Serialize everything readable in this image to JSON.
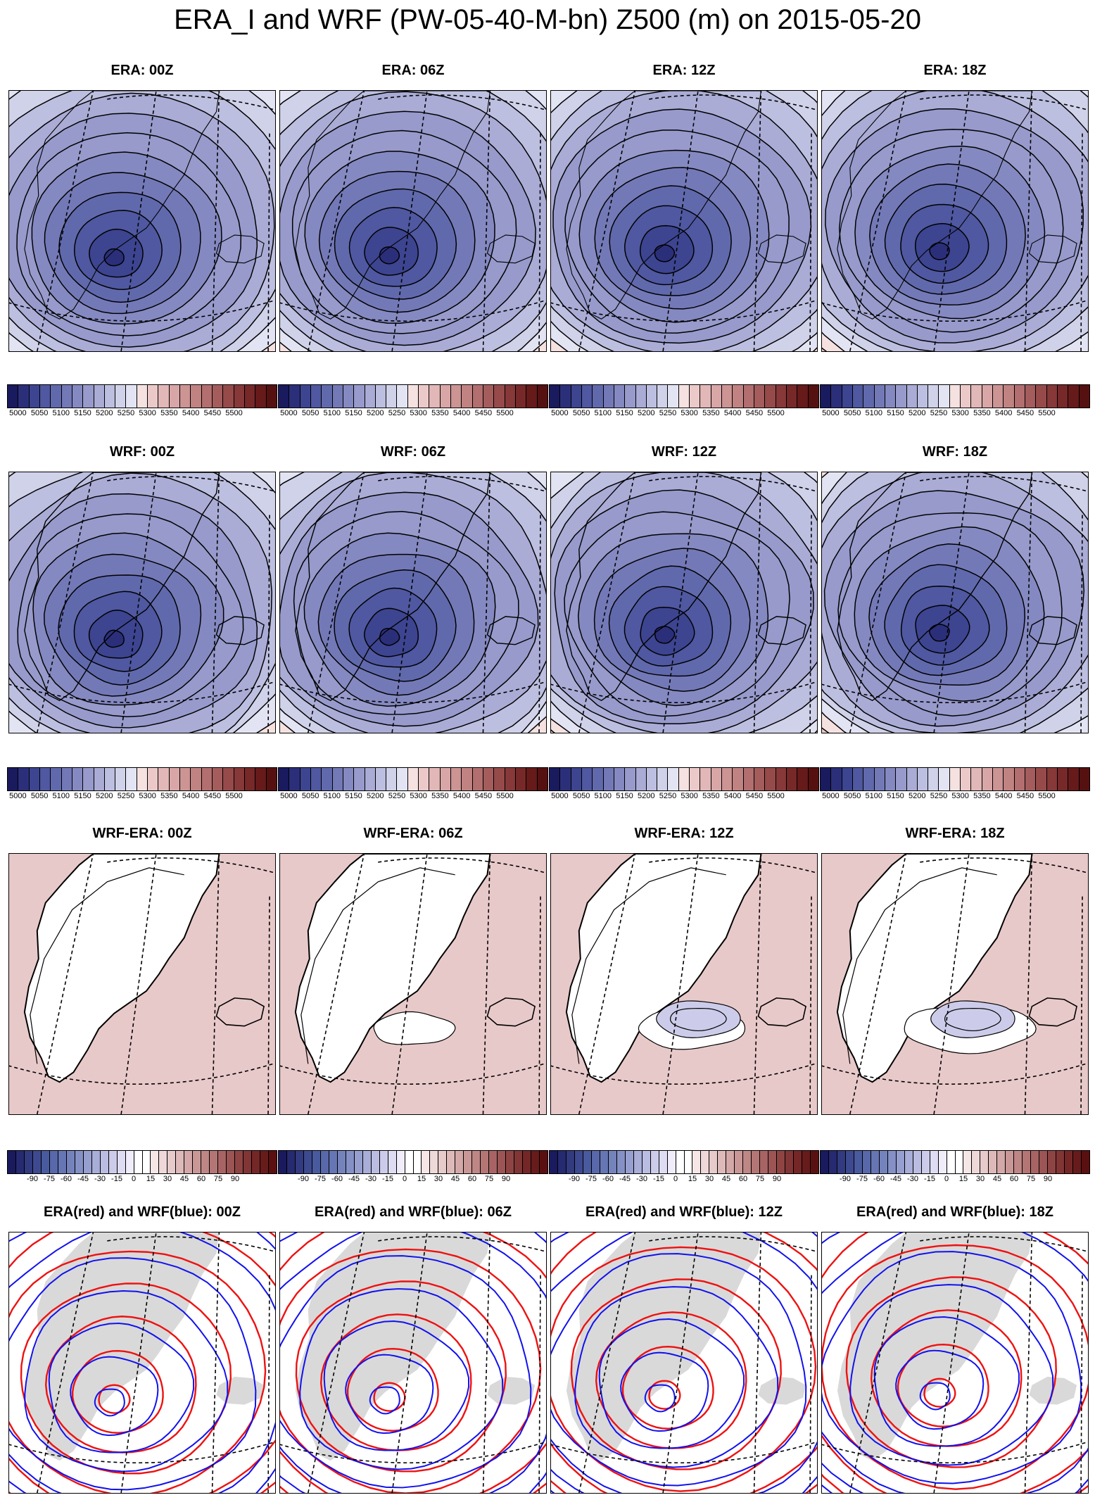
{
  "title": "ERA_I and WRF (PW-05-40-M-bn) Z500 (m) on 2015-05-20",
  "rows": [
    {
      "kind": "era",
      "titles": [
        "ERA: 00Z",
        "ERA: 06Z",
        "ERA: 12Z",
        "ERA: 18Z"
      ]
    },
    {
      "kind": "wrf",
      "titles": [
        "WRF: 00Z",
        "WRF: 06Z",
        "WRF: 12Z",
        "WRF: 18Z"
      ]
    },
    {
      "kind": "diff",
      "titles": [
        "WRF-ERA: 00Z",
        "WRF-ERA: 06Z",
        "WRF-ERA: 12Z",
        "WRF-ERA: 18Z"
      ]
    },
    {
      "kind": "overlay",
      "titles": [
        "ERA(red) and WRF(blue): 00Z",
        "ERA(red) and WRF(blue): 06Z",
        "ERA(red) and WRF(blue): 12Z",
        "ERA(red) and WRF(blue): 18Z"
      ]
    }
  ],
  "colorbars": {
    "z500": {
      "labels": [
        "5000",
        "5050",
        "5100",
        "5150",
        "5200",
        "5250",
        "5300",
        "5350",
        "5400",
        "5450",
        "5500"
      ],
      "colors": [
        "#1a1a5e",
        "#2b2f7a",
        "#3d4490",
        "#4f58a0",
        "#6169ad",
        "#7379b7",
        "#8589c1",
        "#979acb",
        "#aaacd6",
        "#bdbfe0",
        "#d0d2ea",
        "#e3e4f3",
        "#f6e1e1",
        "#ecc9c9",
        "#e2b7b7",
        "#d8a6a6",
        "#cd9494",
        "#c18282",
        "#b36f6f",
        "#a55c5c",
        "#964a4a",
        "#873838",
        "#772828",
        "#661a1a",
        "#551010"
      ]
    },
    "diff": {
      "labels": [
        "-90",
        "-75",
        "-60",
        "-45",
        "-30",
        "-15",
        "0",
        "15",
        "30",
        "45",
        "60",
        "75",
        "90"
      ],
      "colors": [
        "#1a1a5e",
        "#262a70",
        "#323a80",
        "#3e4a90",
        "#4a5a9e",
        "#5868aa",
        "#6676b4",
        "#7583bd",
        "#8591c6",
        "#969fcf",
        "#a8aed8",
        "#babde1",
        "#ccccea",
        "#dedcf2",
        "#f0ecf9",
        "#ffffff",
        "#ffffff",
        "#f6e6e6",
        "#efd8d8",
        "#e7caca",
        "#deb9b9",
        "#d4a8a8",
        "#ca9797",
        "#bf8686",
        "#b47575",
        "#a86464",
        "#9c5454",
        "#8f4444",
        "#823535",
        "#752727",
        "#681b1b",
        "#5a1010"
      ]
    }
  }
}
